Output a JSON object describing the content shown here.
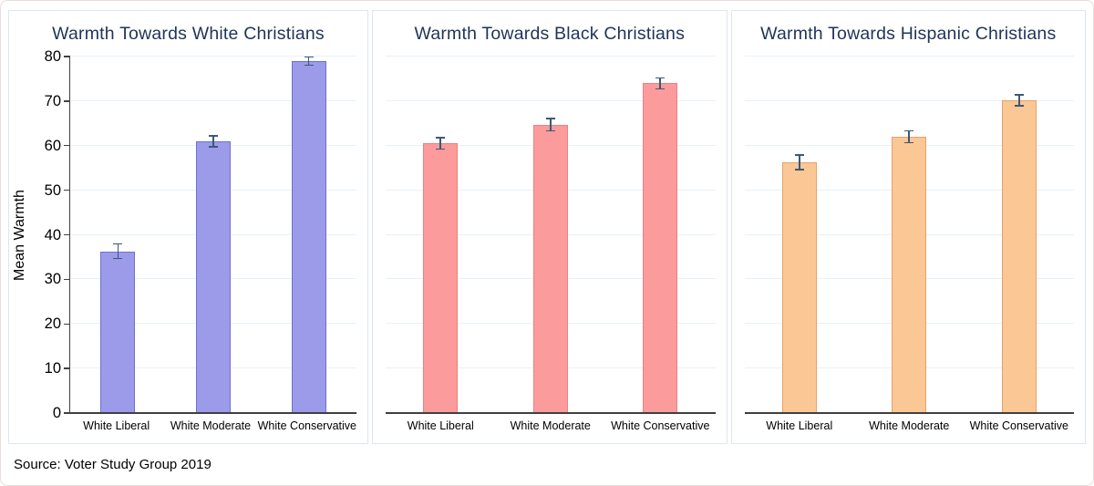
{
  "figure": {
    "source_note": "Source: Voter Study Group 2019"
  },
  "colors": {
    "figure_border": "#eadcdc",
    "panel_border": "#dde7ef",
    "gridline": "#e8f1f8",
    "axis": "#404040",
    "title_text": "#1f3458",
    "error_bar": "#3c5878"
  },
  "chart_data": [
    {
      "type": "bar",
      "title": "Warmth Towards White Christians",
      "categories": [
        "White Liberal",
        "White Moderate",
        "White Conservative"
      ],
      "values": [
        36.3,
        61.0,
        79.0
      ],
      "error_low": [
        34.5,
        59.6,
        77.9
      ],
      "error_high": [
        38.1,
        62.4,
        80.1
      ],
      "bar_fill": "#9b9bea",
      "bar_border": "#6f6fd0",
      "ylabel": "Mean Warmth",
      "xlabel": "",
      "ylim": [
        0,
        80
      ],
      "yticks": [
        0,
        10,
        20,
        30,
        40,
        50,
        60,
        70,
        80
      ],
      "grid": true,
      "error_bars": true
    },
    {
      "type": "bar",
      "title": "Warmth Towards Black Christians",
      "categories": [
        "White Liberal",
        "White Moderate",
        "White Conservative"
      ],
      "values": [
        60.5,
        64.7,
        74.0
      ],
      "error_low": [
        59.1,
        63.2,
        72.6
      ],
      "error_high": [
        61.9,
        66.2,
        75.4
      ],
      "bar_fill": "#fc9b9b",
      "bar_border": "#ef7f7f",
      "ylabel": "",
      "xlabel": "",
      "ylim": [
        0,
        80
      ],
      "yticks": [
        0,
        10,
        20,
        30,
        40,
        50,
        60,
        70,
        80
      ],
      "grid": true,
      "error_bars": true
    },
    {
      "type": "bar",
      "title": "Warmth Towards Hispanic Christians",
      "categories": [
        "White Liberal",
        "White Moderate",
        "White Conservative"
      ],
      "values": [
        56.3,
        62.0,
        70.2
      ],
      "error_low": [
        54.5,
        60.5,
        68.8
      ],
      "error_high": [
        58.1,
        63.5,
        71.6
      ],
      "bar_fill": "#fbc795",
      "bar_border": "#e5a269",
      "ylabel": "",
      "xlabel": "",
      "ylim": [
        0,
        80
      ],
      "yticks": [
        0,
        10,
        20,
        30,
        40,
        50,
        60,
        70,
        80
      ],
      "grid": true,
      "error_bars": true
    }
  ]
}
